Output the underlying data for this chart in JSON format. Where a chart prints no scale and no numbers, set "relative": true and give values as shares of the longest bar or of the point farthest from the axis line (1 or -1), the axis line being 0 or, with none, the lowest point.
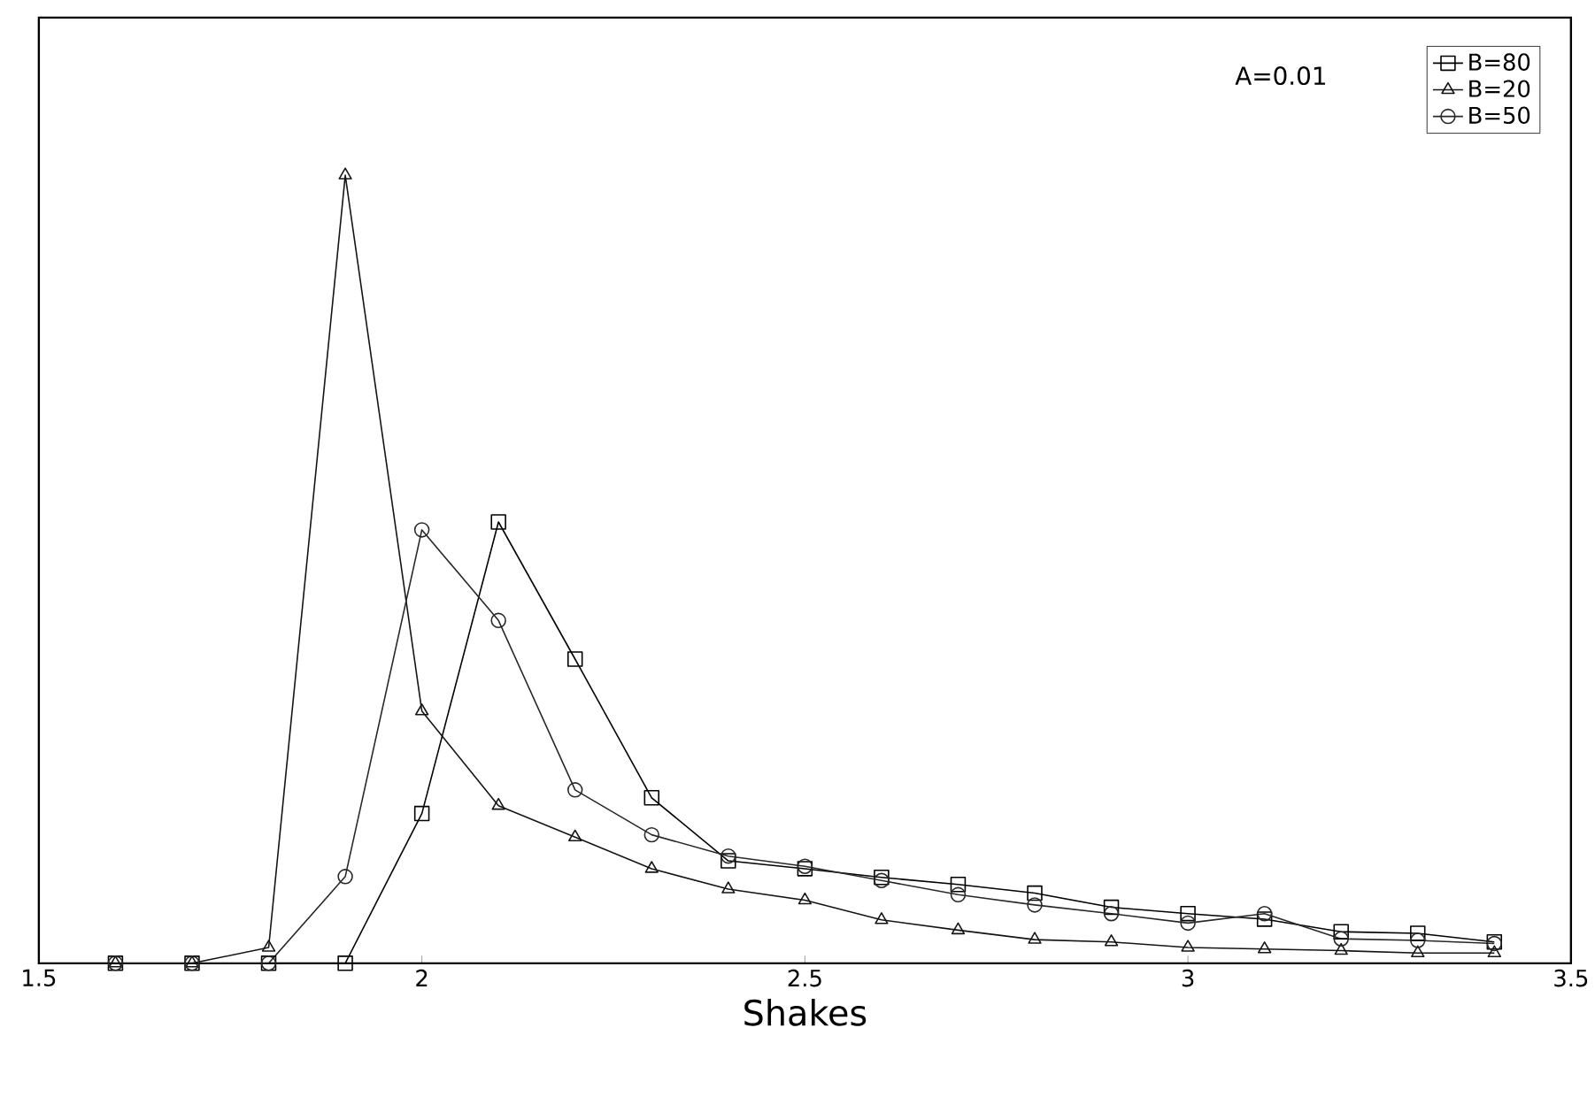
{
  "chart_data": {
    "type": "line",
    "relative": true,
    "xlabel": "Shakes",
    "x": [
      1.6,
      1.7,
      1.8,
      1.9,
      2.0,
      2.1,
      2.2,
      2.3,
      2.4,
      2.5,
      2.6,
      2.7,
      2.8,
      2.9,
      3.0,
      3.1,
      3.2,
      3.3,
      3.4
    ],
    "xlim": [
      1.5,
      3.5
    ],
    "xticks": [
      1.5,
      2,
      2.5,
      3,
      3.5
    ],
    "annotations": [
      "A=0.01"
    ],
    "legend": "top right",
    "line_style": "solid",
    "grid": false,
    "series": [
      {
        "name": "B=80",
        "color": "#000000",
        "marker": "square",
        "values": [
          0,
          0,
          0,
          0,
          0.19,
          0.56,
          0.386,
          0.21,
          0.13,
          0.12,
          0.109,
          0.1,
          0.089,
          0.071,
          0.063,
          0.056,
          0.04,
          0.038,
          0.027
        ]
      },
      {
        "name": "B=20",
        "color": "#141414",
        "marker": "triangle",
        "values": [
          0,
          0,
          0.02,
          1,
          0.32,
          0.2,
          0.16,
          0.12,
          0.094,
          0.08,
          0.055,
          0.042,
          0.03,
          0.027,
          0.02,
          0.018,
          0.016,
          0.013,
          0.013
        ]
      },
      {
        "name": "B=50",
        "color": "#282828",
        "marker": "circle",
        "values": [
          0,
          0,
          0,
          0.11,
          0.55,
          0.435,
          0.22,
          0.163,
          0.136,
          0.123,
          0.105,
          0.087,
          0.074,
          0.063,
          0.051,
          0.063,
          0.031,
          0.029,
          0.025
        ]
      }
    ]
  }
}
